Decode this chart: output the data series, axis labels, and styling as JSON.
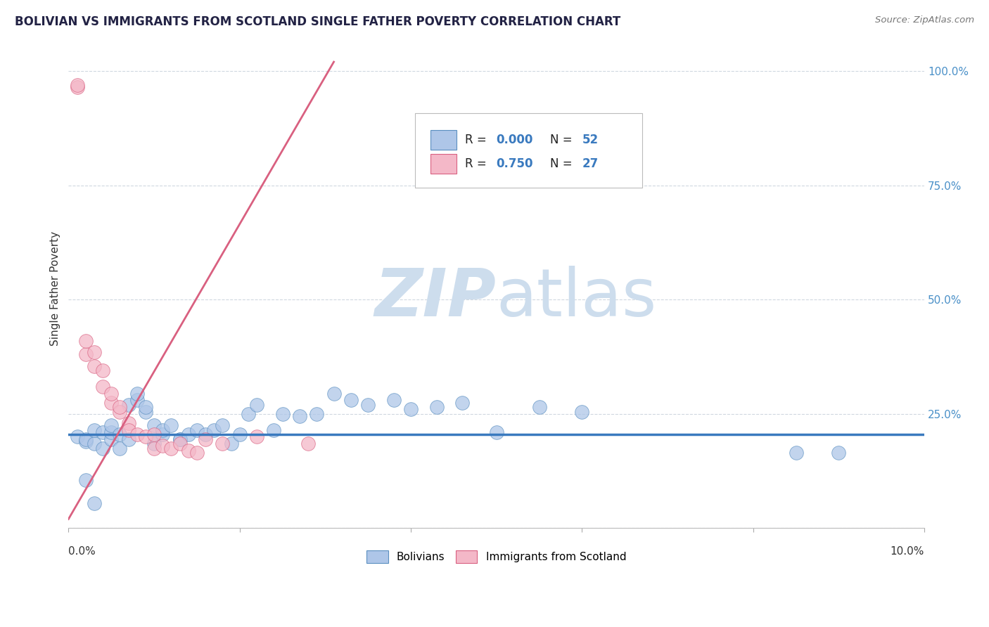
{
  "title": "BOLIVIAN VS IMMIGRANTS FROM SCOTLAND SINGLE FATHER POVERTY CORRELATION CHART",
  "source": "Source: ZipAtlas.com",
  "ylabel": "Single Father Poverty",
  "legend1_r": "0.000",
  "legend1_n": "52",
  "legend2_r": "0.750",
  "legend2_n": "27",
  "blue_color": "#aec6e8",
  "pink_color": "#f4b8c8",
  "blue_edge_color": "#5a8fc0",
  "pink_edge_color": "#d96080",
  "blue_line_color": "#3a7abf",
  "pink_line_color": "#d96080",
  "watermark_color": "#cddded",
  "blue_scatter_x": [
    0.001,
    0.002,
    0.002,
    0.003,
    0.003,
    0.004,
    0.004,
    0.005,
    0.005,
    0.005,
    0.006,
    0.006,
    0.007,
    0.007,
    0.008,
    0.008,
    0.009,
    0.009,
    0.01,
    0.01,
    0.011,
    0.011,
    0.012,
    0.013,
    0.013,
    0.014,
    0.015,
    0.016,
    0.017,
    0.018,
    0.019,
    0.02,
    0.021,
    0.022,
    0.024,
    0.025,
    0.027,
    0.029,
    0.031,
    0.033,
    0.035,
    0.038,
    0.04,
    0.043,
    0.046,
    0.05,
    0.055,
    0.06,
    0.085,
    0.09,
    0.002,
    0.003
  ],
  "blue_scatter_y": [
    0.2,
    0.19,
    0.195,
    0.185,
    0.215,
    0.175,
    0.21,
    0.195,
    0.21,
    0.225,
    0.175,
    0.205,
    0.195,
    0.27,
    0.28,
    0.295,
    0.255,
    0.265,
    0.225,
    0.185,
    0.205,
    0.215,
    0.225,
    0.195,
    0.195,
    0.205,
    0.215,
    0.205,
    0.215,
    0.225,
    0.185,
    0.205,
    0.25,
    0.27,
    0.215,
    0.25,
    0.245,
    0.25,
    0.295,
    0.28,
    0.27,
    0.28,
    0.26,
    0.265,
    0.275,
    0.21,
    0.265,
    0.255,
    0.165,
    0.165,
    0.105,
    0.055
  ],
  "pink_scatter_x": [
    0.001,
    0.001,
    0.002,
    0.002,
    0.003,
    0.003,
    0.004,
    0.004,
    0.005,
    0.005,
    0.006,
    0.006,
    0.007,
    0.007,
    0.008,
    0.009,
    0.01,
    0.01,
    0.011,
    0.012,
    0.013,
    0.014,
    0.015,
    0.016,
    0.018,
    0.022,
    0.028
  ],
  "pink_scatter_y": [
    0.965,
    0.97,
    0.38,
    0.41,
    0.355,
    0.385,
    0.31,
    0.345,
    0.275,
    0.295,
    0.255,
    0.265,
    0.23,
    0.215,
    0.205,
    0.2,
    0.205,
    0.175,
    0.18,
    0.175,
    0.185,
    0.17,
    0.165,
    0.195,
    0.185,
    0.2,
    0.185
  ],
  "pink_line_x": [
    0.0,
    0.031
  ],
  "pink_line_y": [
    0.02,
    1.02
  ],
  "blue_line_y": 0.205,
  "xlim": [
    0.0,
    0.1
  ],
  "ylim": [
    0.0,
    1.05
  ],
  "yticks": [
    0.0,
    0.25,
    0.5,
    0.75,
    1.0
  ],
  "ytick_labels": [
    "",
    "25.0%",
    "50.0%",
    "75.0%",
    "100.0%"
  ]
}
